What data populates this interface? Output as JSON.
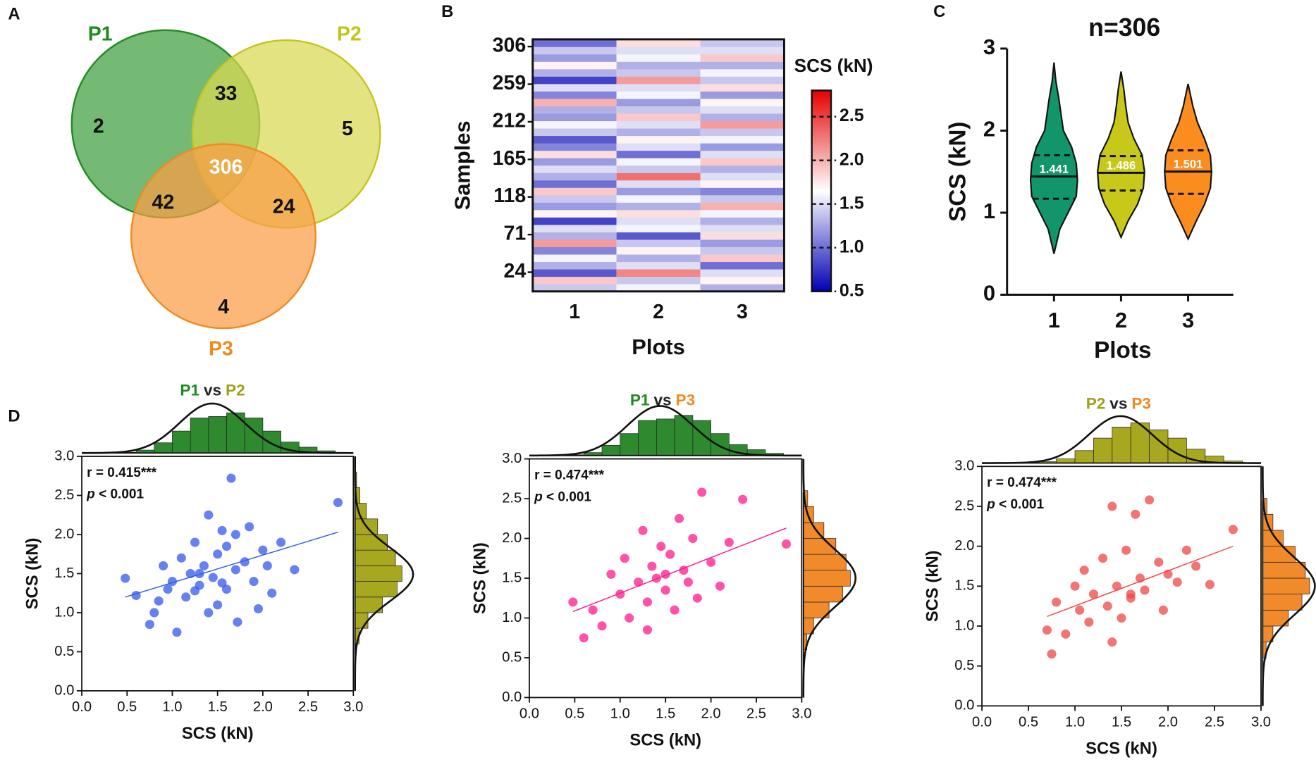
{
  "panel_labels": [
    "A",
    "B",
    "C",
    "D"
  ],
  "chart_data": [
    {
      "type": "venn",
      "sets": [
        {
          "name": "P1",
          "color": "#3f9f3f",
          "label_color": "#1f8a1f"
        },
        {
          "name": "P2",
          "color": "#d8d850",
          "label_color": "#c4c41c"
        },
        {
          "name": "P3",
          "color": "#fb9d45",
          "label_color": "#f08a20"
        }
      ],
      "regions": [
        {
          "sets": [
            0
          ],
          "value": 2
        },
        {
          "sets": [
            1
          ],
          "value": 5
        },
        {
          "sets": [
            2
          ],
          "value": 4
        },
        {
          "sets": [
            0,
            1
          ],
          "value": 33
        },
        {
          "sets": [
            0,
            2
          ],
          "value": 42
        },
        {
          "sets": [
            1,
            2
          ],
          "value": 24
        },
        {
          "sets": [
            0,
            1,
            2
          ],
          "value": 306
        }
      ]
    },
    {
      "type": "heatmap",
      "xlabel": "Plots",
      "ylabel": "Samples",
      "categories": [
        "1",
        "2",
        "3"
      ],
      "ylim": [
        0,
        315
      ],
      "yticks": [
        24,
        71,
        118,
        165,
        212,
        259,
        306
      ],
      "colorbar_title": "SCS (kN)",
      "clim": [
        0.5,
        2.8
      ],
      "colormap": [
        "#0000b4",
        "#ffffff",
        "#e60000"
      ],
      "colorbar_ticks": [
        0.5,
        {
          "value": 1.0,
          "label": "1.0"
        },
        1.5,
        {
          "value": 2.0,
          "label": "2.0"
        },
        2.5
      ],
      "values": [
        [
          1.4,
          1.9,
          0.9,
          1.3,
          1.6,
          1.1,
          2.1,
          1.3,
          1.5,
          0.8,
          1.7,
          1.2,
          1.4,
          1.9,
          1.0,
          1.3,
          1.5,
          1.2,
          1.8,
          1.1,
          0.9,
          1.4,
          1.6,
          1.2,
          1.3,
          2.0,
          1.1,
          1.5,
          0.8,
          1.3,
          1.7,
          1.2,
          1.4,
          1.0
        ],
        [
          1.6,
          1.4,
          2.2,
          1.5,
          1.3,
          1.7,
          1.4,
          0.9,
          1.6,
          1.5,
          1.8,
          1.3,
          1.6,
          1.2,
          1.5,
          2.3,
          1.4,
          1.6,
          1.0,
          1.5,
          1.7,
          1.3,
          1.5,
          1.9,
          1.4,
          1.2,
          1.6,
          1.5,
          2.1,
          1.4,
          1.3,
          1.6,
          1.5,
          1.8
        ],
        [
          1.3,
          1.7,
          1.5,
          1.0,
          1.9,
          1.4,
          1.2,
          1.8,
          1.5,
          1.3,
          1.6,
          2.0,
          1.4,
          1.1,
          1.7,
          1.5,
          1.3,
          1.9,
          1.5,
          1.2,
          1.6,
          1.4,
          2.1,
          1.3,
          1.5,
          1.7,
          1.2,
          1.8,
          1.4,
          1.6,
          1.3,
          1.9,
          1.5,
          1.4
        ]
      ]
    },
    {
      "type": "violin",
      "title": "n=306",
      "xlabel": "Plots",
      "ylabel": "SCS (kN)",
      "categories": [
        "1",
        "2",
        "3"
      ],
      "colors": [
        "#12956a",
        "#c8c81a",
        "#fb8c1e"
      ],
      "ylim": [
        0,
        3
      ],
      "yticks": [
        0,
        1,
        2,
        3
      ],
      "medians": [
        1.441,
        1.486,
        1.501
      ],
      "q1": [
        1.17,
        1.27,
        1.23
      ],
      "q3": [
        1.7,
        1.69,
        1.76
      ],
      "violins": [
        {
          "y": [
            0.5,
            0.8,
            1.0,
            1.2,
            1.4,
            1.6,
            1.8,
            2.0,
            2.2,
            2.4,
            2.6,
            2.83
          ],
          "widths": [
            0,
            0.25,
            0.6,
            0.95,
            1.0,
            0.95,
            0.75,
            0.4,
            0.3,
            0.2,
            0.08,
            0
          ]
        },
        {
          "y": [
            0.7,
            0.9,
            1.1,
            1.3,
            1.5,
            1.7,
            1.9,
            2.1,
            2.3,
            2.5,
            2.72
          ],
          "widths": [
            0,
            0.3,
            0.7,
            0.95,
            1.0,
            0.9,
            0.55,
            0.3,
            0.2,
            0.12,
            0
          ]
        },
        {
          "y": [
            0.68,
            0.9,
            1.1,
            1.3,
            1.5,
            1.7,
            1.9,
            2.1,
            2.3,
            2.57
          ],
          "widths": [
            0,
            0.35,
            0.7,
            0.95,
            1.0,
            0.95,
            0.7,
            0.4,
            0.2,
            0
          ]
        }
      ]
    },
    {
      "type": "scatter",
      "title": [
        "P1",
        "vs",
        "P2"
      ],
      "title_colors": [
        "#1f8a1f",
        "#222222",
        "#a0a020"
      ],
      "annotation": [
        "r = 0.415***",
        "p",
        " < 0.001"
      ],
      "xlabel": "SCS (kN)",
      "ylabel": "SCS (kN)",
      "xlim": [
        0,
        3
      ],
      "ylim": [
        0,
        3
      ],
      "xticks": [
        {
          "value": 0,
          "label": "0.0"
        },
        0.5,
        {
          "value": 1,
          "label": "1.0"
        },
        1.5,
        {
          "value": 2,
          "label": "2.0"
        },
        2.5,
        {
          "value": 3,
          "label": "3.0"
        }
      ],
      "yticks": [
        {
          "value": 0,
          "label": "0.0"
        },
        0.5,
        {
          "value": 1,
          "label": "1.0"
        },
        1.5,
        {
          "value": 2,
          "label": "2.0"
        },
        2.5,
        {
          "value": 3,
          "label": "3.0"
        }
      ],
      "color": "#3358ee",
      "x": [
        0.48,
        0.6,
        0.75,
        0.8,
        0.9,
        0.95,
        1.0,
        1.05,
        1.1,
        1.15,
        1.2,
        1.25,
        1.3,
        1.35,
        1.4,
        1.45,
        1.5,
        1.5,
        1.55,
        1.6,
        1.65,
        1.7,
        1.72,
        1.8,
        1.85,
        1.9,
        2.0,
        2.1,
        2.2,
        2.35,
        2.83,
        1.4,
        1.3,
        1.25,
        1.6,
        0.85,
        1.7,
        1.95,
        2.05,
        1.55
      ],
      "y": [
        1.44,
        1.22,
        0.85,
        1.0,
        1.6,
        1.3,
        1.4,
        0.75,
        1.7,
        1.2,
        1.5,
        1.9,
        1.35,
        1.6,
        2.25,
        1.45,
        1.1,
        1.75,
        2.05,
        1.3,
        2.72,
        1.55,
        0.88,
        1.65,
        2.1,
        1.4,
        1.8,
        1.25,
        1.9,
        1.55,
        2.41,
        1.0,
        1.5,
        1.28,
        1.85,
        1.15,
        2.0,
        1.05,
        1.6,
        1.38
      ],
      "fit": {
        "x": [
          0.48,
          2.83
        ],
        "y": [
          1.2,
          2.03
        ]
      },
      "top_hist": {
        "color": "#2f8a2f",
        "bins": [
          0.4,
          0.6,
          0.8,
          1.0,
          1.2,
          1.4,
          1.6,
          1.8,
          2.0,
          2.2,
          2.4,
          2.6,
          2.8
        ],
        "counts": [
          1,
          4,
          14,
          30,
          48,
          50,
          55,
          48,
          30,
          15,
          8,
          3
        ],
        "mean": 1.44,
        "sd": 0.36
      },
      "right_hist": {
        "color": "#a8a820",
        "bins": [
          0.4,
          0.6,
          0.8,
          1.0,
          1.2,
          1.4,
          1.6,
          1.8,
          2.0,
          2.2,
          2.4,
          2.6,
          2.8
        ],
        "counts": [
          1,
          5,
          16,
          34,
          52,
          58,
          50,
          40,
          28,
          14,
          6,
          2
        ],
        "mean": 1.49,
        "sd": 0.34
      }
    },
    {
      "type": "scatter",
      "title": [
        "P1",
        "vs",
        "P3"
      ],
      "title_colors": [
        "#1f8a1f",
        "#222222",
        "#f08a20"
      ],
      "annotation": [
        "r = 0.474***",
        "p",
        " < 0.001"
      ],
      "xlabel": "SCS (kN)",
      "ylabel": "SCS (kN)",
      "xlim": [
        0,
        3
      ],
      "ylim": [
        0,
        3
      ],
      "xticks": [
        {
          "value": 0,
          "label": "0.0"
        },
        0.5,
        {
          "value": 1,
          "label": "1.0"
        },
        1.5,
        {
          "value": 2,
          "label": "2.0"
        },
        2.5,
        {
          "value": 3,
          "label": "3.0"
        }
      ],
      "yticks": [
        {
          "value": 0,
          "label": "0.0"
        },
        0.5,
        {
          "value": 1,
          "label": "1.0"
        },
        1.5,
        {
          "value": 2,
          "label": "2.0"
        },
        2.5,
        {
          "value": 3,
          "label": "3.0"
        }
      ],
      "color": "#ff1a8c",
      "x": [
        0.48,
        0.6,
        0.7,
        0.8,
        0.9,
        1.0,
        1.05,
        1.1,
        1.2,
        1.25,
        1.3,
        1.35,
        1.4,
        1.45,
        1.5,
        1.55,
        1.6,
        1.65,
        1.7,
        1.75,
        1.8,
        1.85,
        1.9,
        2.0,
        2.1,
        2.2,
        2.35,
        2.83,
        1.3,
        1.5
      ],
      "y": [
        1.2,
        0.75,
        1.1,
        0.9,
        1.55,
        1.3,
        1.75,
        1.0,
        1.45,
        2.1,
        1.2,
        1.65,
        1.5,
        1.9,
        1.35,
        1.8,
        1.1,
        2.25,
        1.6,
        1.45,
        2.0,
        1.25,
        2.58,
        1.7,
        1.4,
        1.95,
        2.49,
        1.93,
        0.85,
        1.55
      ],
      "fit": {
        "x": [
          0.48,
          2.83
        ],
        "y": [
          1.08,
          2.13
        ]
      },
      "top_hist": {
        "color": "#2f8a2f",
        "bins": [
          0.4,
          0.6,
          0.8,
          1.0,
          1.2,
          1.4,
          1.6,
          1.8,
          2.0,
          2.2,
          2.4,
          2.6,
          2.8
        ],
        "counts": [
          1,
          4,
          14,
          30,
          48,
          50,
          55,
          48,
          30,
          15,
          8,
          3
        ],
        "mean": 1.44,
        "sd": 0.36
      },
      "right_hist": {
        "color": "#f08a2a",
        "bins": [
          0.6,
          0.8,
          1.0,
          1.2,
          1.4,
          1.6,
          1.8,
          2.0,
          2.2,
          2.4,
          2.6
        ],
        "counts": [
          4,
          12,
          30,
          46,
          55,
          50,
          38,
          24,
          12,
          5
        ],
        "mean": 1.5,
        "sd": 0.36
      }
    },
    {
      "type": "scatter",
      "title": [
        "P2",
        "vs",
        "P3"
      ],
      "title_colors": [
        "#a0a020",
        "#222222",
        "#f08a20"
      ],
      "annotation": [
        "r = 0.474***",
        "p",
        " < 0.001"
      ],
      "xlabel": "SCS (kN)",
      "ylabel": "SCS (kN)",
      "xlim": [
        0,
        3
      ],
      "ylim": [
        0,
        3
      ],
      "xticks": [
        {
          "value": 0,
          "label": "0.0"
        },
        0.5,
        {
          "value": 1,
          "label": "1.0"
        },
        1.5,
        {
          "value": 2,
          "label": "2.0"
        },
        2.5,
        {
          "value": 3,
          "label": "3.0"
        }
      ],
      "yticks": [
        {
          "value": 0,
          "label": "0.0"
        },
        0.5,
        {
          "value": 1,
          "label": "1.0"
        },
        1.5,
        {
          "value": 2,
          "label": "2.0"
        },
        2.5,
        {
          "value": 3,
          "label": "3.0"
        }
      ],
      "color": "#f04545",
      "x": [
        0.7,
        0.75,
        0.8,
        0.9,
        1.0,
        1.05,
        1.1,
        1.15,
        1.2,
        1.3,
        1.35,
        1.4,
        1.45,
        1.5,
        1.55,
        1.6,
        1.65,
        1.7,
        1.75,
        1.8,
        1.9,
        1.95,
        2.0,
        2.1,
        2.2,
        2.3,
        2.45,
        2.7,
        1.4,
        1.6
      ],
      "y": [
        0.95,
        0.65,
        1.3,
        0.9,
        1.5,
        1.2,
        1.7,
        1.05,
        1.4,
        1.85,
        1.25,
        2.5,
        1.5,
        1.1,
        1.95,
        1.35,
        2.4,
        1.6,
        1.45,
        2.58,
        1.8,
        1.2,
        1.65,
        1.55,
        1.95,
        1.75,
        1.52,
        2.21,
        0.8,
        1.4
      ],
      "fit": {
        "x": [
          0.7,
          2.7
        ],
        "y": [
          1.12,
          2.0
        ]
      },
      "top_hist": {
        "color": "#a8a820",
        "bins": [
          0.6,
          0.8,
          1.0,
          1.2,
          1.4,
          1.6,
          1.8,
          2.0,
          2.2,
          2.4,
          2.6,
          2.8
        ],
        "counts": [
          2,
          6,
          18,
          36,
          52,
          58,
          48,
          36,
          20,
          10,
          3
        ],
        "mean": 1.49,
        "sd": 0.34
      },
      "right_hist": {
        "color": "#f08a2a",
        "bins": [
          0.6,
          0.8,
          1.0,
          1.2,
          1.4,
          1.6,
          1.8,
          2.0,
          2.2,
          2.4,
          2.6
        ],
        "counts": [
          4,
          12,
          30,
          46,
          55,
          50,
          38,
          24,
          12,
          5
        ],
        "mean": 1.5,
        "sd": 0.36
      }
    }
  ]
}
